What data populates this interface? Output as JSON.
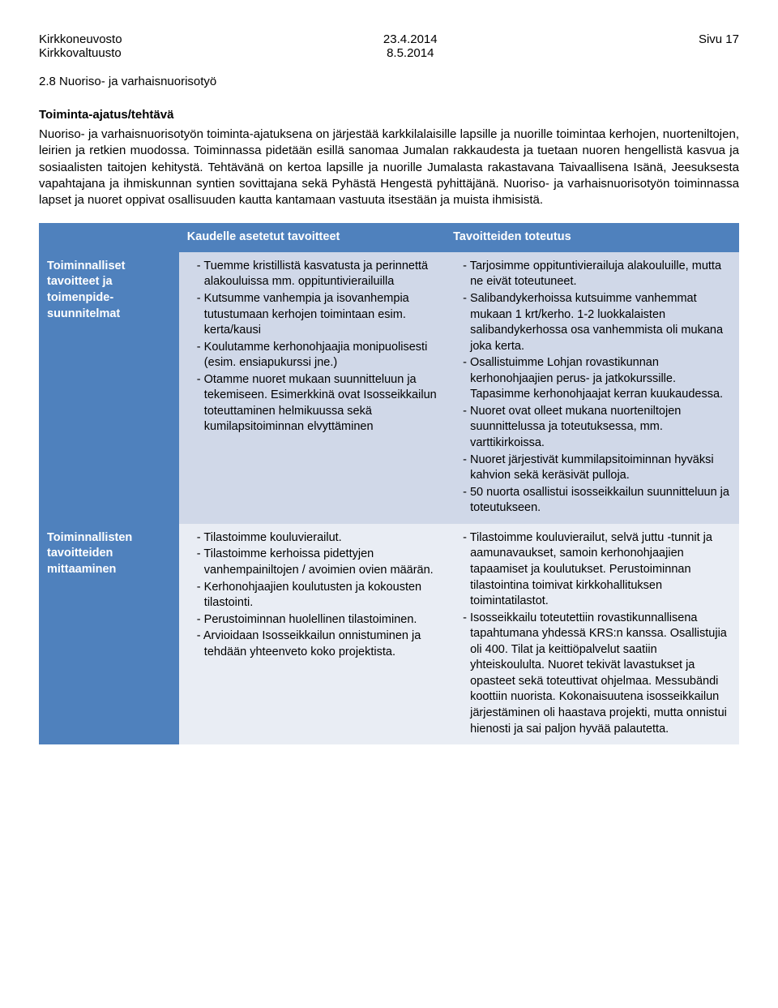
{
  "page": {
    "header_left_1": "Kirkkoneuvosto",
    "header_left_2": "Kirkkovaltuusto",
    "header_center_1": "23.4.2014",
    "header_center_2": "8.5.2014",
    "header_right": "Sivu 17"
  },
  "section": {
    "number_title": "2.8   Nuoriso- ja varhaisnuorisotyö",
    "sub_heading": "Toiminta-ajatus/tehtävä",
    "body": "Nuoriso- ja varhaisnuorisotyön toiminta-ajatuksena on järjestää karkkilalaisille lapsille ja nuorille toimintaa kerhojen, nuorteniltojen, leirien ja retkien muodossa. Toiminnassa pidetään esillä sanomaa Jumalan rakkaudesta ja tuetaan nuoren hengellistä kasvua ja sosiaalisten taitojen kehitystä. Tehtävänä on kertoa lapsille ja nuorille Jumalasta rakastavana Taivaallisena Isänä, Jeesuksesta vapahtajana ja ihmiskunnan syntien sovittajana sekä Pyhästä Hengestä pyhittäjänä. Nuoriso- ja varhaisnuorisotyön toiminnassa lapset ja nuoret oppivat osallisuuden kautta kantamaan vastuuta itsestään ja muista ihmisistä."
  },
  "table": {
    "colors": {
      "header_bg": "#4f81bd",
      "header_fg": "#ffffff",
      "row_label_bg": "#4f81bd",
      "row_label_fg": "#ffffff",
      "body_bg_1": "#d0d8e8",
      "body_bg_2": "#e9edf4",
      "body_fg": "#000000"
    },
    "header": {
      "col0": "",
      "col1": "Kaudelle asetetut tavoitteet",
      "col2": "Tavoitteiden toteutus"
    },
    "rows": [
      {
        "label": "Toiminnalliset tavoitteet ja toimenpide­suunnitelmat",
        "goals": [
          "Tuemme kristillistä kasvatusta ja perinnettä alakouluissa mm. oppituntivierailuilla",
          "Kutsumme vanhempia ja isovanhempia tutustumaan kerhojen toimintaan esim. kerta/kausi",
          "Koulutamme kerhonohjaajia monipuolisesti (esim. ensiapukurssi jne.)",
          "Otamme nuoret mukaan suunnitteluun ja tekemiseen. Esimerkkinä ovat Isosseikkailun toteuttaminen helmikuussa sekä kumilapsitoiminnan elvyttäminen"
        ],
        "results": [
          "Tarjosimme oppituntivierailuja alakouluille, mutta ne eivät toteutuneet.",
          "Salibandykerhoissa kutsuimme vanhemmat mukaan 1 krt/kerho. 1-2 luokkalaisten salibandykerhossa osa vanhemmista oli mukana joka kerta.",
          "Osallistuimme Lohjan rovastikunnan kerhonohjaajien perus- ja jatkokurssille. Tapasimme kerhonohjaajat kerran kuukaudessa.",
          "Nuoret ovat olleet mukana nuorteniltojen suunnittelussa ja toteutuksessa, mm. varttikirkoissa.",
          "Nuoret järjestivät kummilapsitoiminnan hyväksi kahvion sekä keräsivät pulloja.",
          "50 nuorta osallistui isosseikkailun suunnitteluun ja toteutukseen."
        ]
      },
      {
        "label": "Toiminnallisten tavoitteiden mittaaminen",
        "goals": [
          "Tilastoimme kouluvierailut.",
          "Tilastoimme kerhoissa pidettyjen vanhempainiltojen / avoimien ovien määrän.",
          "Kerhonohjaajien koulutusten ja kokousten tilastointi.",
          "Perustoiminnan huolellinen tilastoiminen.",
          "Arvioidaan Isosseikkailun onnistuminen ja tehdään yhteenveto koko projektista."
        ],
        "results": [
          "Tilastoimme kouluvierailut, selvä juttu -tunnit ja aamunavaukset, samoin kerhonohjaajien tapaamiset ja koulutukset. Perustoiminnan tilastointina toimivat kirkkohallituksen toimintatilastot.",
          "Isosseikkailu toteutettiin rovastikunnallisena tapahtumana yhdessä KRS:n kanssa. Osallistujia oli 400. Tilat ja keittiöpalvelut saatiin yhteiskoululta. Nuoret tekivät lavastukset ja opasteet sekä toteuttivat ohjelmaa. Messubändi koottiin nuorista. Kokonaisuutena isosseikkailun järjestäminen oli haastava projekti, mutta onnistui hienosti ja sai paljon hyvää palautetta."
        ]
      }
    ]
  }
}
